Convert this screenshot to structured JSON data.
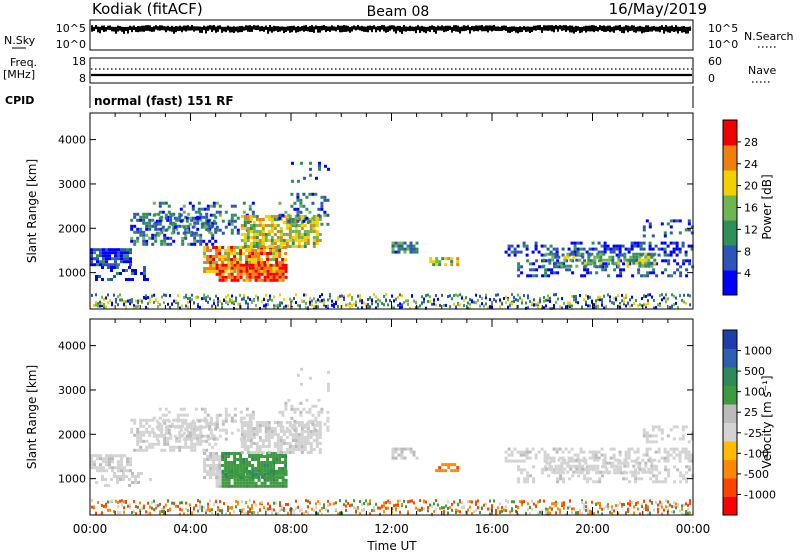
{
  "header": {
    "station": "Kodiak (fitACF)",
    "beam": "Beam 08",
    "date": "16/May/2019"
  },
  "aux": {
    "nsky_label": "N.Sky",
    "nsearch_label": "N.Search",
    "count_ticks": [
      "10^5",
      "10^0"
    ],
    "freq_label_1": "Freq.",
    "freq_label_2": "[MHz]",
    "freq_ticks": [
      "18",
      "8"
    ],
    "nave_label": "Nave",
    "nave_ticks": [
      "60",
      "0"
    ],
    "cpid_label": "CPID",
    "cpid_text": "normal (fast) 151 RF"
  },
  "chart_data": [
    {
      "type": "heatmap",
      "name": "power",
      "ylabel": "Slant Range [km]",
      "y_ticks": [
        "4000",
        "3000",
        "2000",
        "1000"
      ],
      "y_tick_values": [
        4000,
        3000,
        2000,
        1000
      ],
      "ylim": [
        180,
        4600
      ],
      "xlim": [
        0,
        24
      ],
      "x_ticks": [
        "00:00",
        "04:00",
        "08:00",
        "12:00",
        "16:00",
        "20:00",
        "00:00"
      ],
      "colorbar": {
        "label": "Power [dB]",
        "ticks": [
          "28",
          "24",
          "20",
          "16",
          "12",
          "8",
          "4"
        ],
        "colors": [
          "#0000ff",
          "#2b56b8",
          "#2f8f5a",
          "#6fb550",
          "#f5d000",
          "#f07f10",
          "#f00000"
        ]
      }
    },
    {
      "type": "heatmap",
      "name": "velocity",
      "ylabel": "Slant Range [km]",
      "y_ticks": [
        "4000",
        "3000",
        "2000",
        "1000"
      ],
      "y_tick_values": [
        4000,
        3000,
        2000,
        1000
      ],
      "ylim": [
        180,
        4600
      ],
      "xlim": [
        0,
        24
      ],
      "x_ticks": [
        "00:00",
        "04:00",
        "08:00",
        "12:00",
        "16:00",
        "20:00",
        "00:00"
      ],
      "colorbar": {
        "label": "Velocity [m s⁻¹]",
        "ticks": [
          "1000",
          "500",
          "100",
          "25",
          "-25",
          "-100",
          "-500",
          "-1000"
        ],
        "colors": [
          "#ff0000",
          "#ff4400",
          "#ff8800",
          "#ffbb00",
          "#d3d3d3",
          "#bbbbbb",
          "#3e9a3e",
          "#2e8a5a",
          "#2f5fb0",
          "#1e3faa"
        ]
      }
    }
  ],
  "xaxis": {
    "label": "Time UT"
  }
}
